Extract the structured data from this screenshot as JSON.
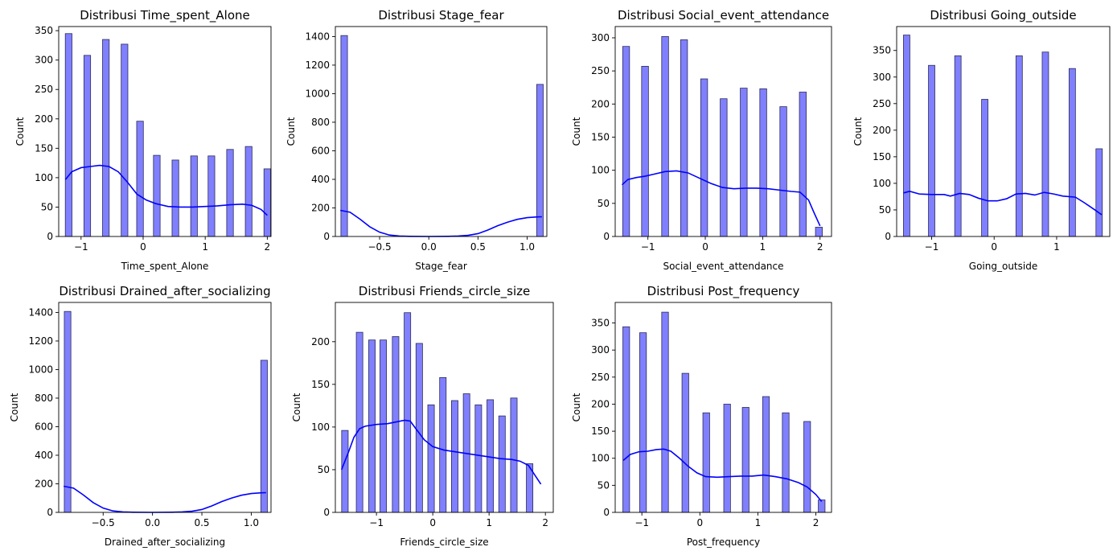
{
  "colors": {
    "bar_fill": "#8080ff",
    "bar_edge": "#2b2b55",
    "kde_line": "#0000ff",
    "axis": "#000000"
  },
  "chart_data": [
    {
      "type": "histogram",
      "title": "Distribusi Time_spent_Alone",
      "xlabel": "Time_spent_Alone",
      "ylabel": "Count",
      "xlim": [
        -1.36,
        2.06
      ],
      "ylim": [
        0,
        357
      ],
      "xticks": [
        -1,
        0,
        1,
        2
      ],
      "yticks": [
        0,
        50,
        100,
        150,
        200,
        250,
        300,
        350
      ],
      "bar_width": 0.1075,
      "bars": [
        {
          "x": -1.2,
          "count": 345
        },
        {
          "x": -0.9,
          "count": 308
        },
        {
          "x": -0.6,
          "count": 335
        },
        {
          "x": -0.3,
          "count": 327
        },
        {
          "x": -0.05,
          "count": 196
        },
        {
          "x": 0.22,
          "count": 138
        },
        {
          "x": 0.52,
          "count": 130
        },
        {
          "x": 0.82,
          "count": 137
        },
        {
          "x": 1.1,
          "count": 137
        },
        {
          "x": 1.4,
          "count": 148
        },
        {
          "x": 1.7,
          "count": 153
        },
        {
          "x": 2.0,
          "count": 115
        }
      ],
      "kde": [
        [
          -1.25,
          97
        ],
        [
          -1.15,
          110
        ],
        [
          -1.0,
          117
        ],
        [
          -0.85,
          119
        ],
        [
          -0.7,
          121
        ],
        [
          -0.55,
          119
        ],
        [
          -0.4,
          110
        ],
        [
          -0.25,
          92
        ],
        [
          -0.1,
          72
        ],
        [
          0.05,
          62
        ],
        [
          0.2,
          56
        ],
        [
          0.4,
          51
        ],
        [
          0.6,
          50
        ],
        [
          0.8,
          50
        ],
        [
          1.0,
          51
        ],
        [
          1.2,
          52
        ],
        [
          1.4,
          54
        ],
        [
          1.6,
          55
        ],
        [
          1.75,
          53
        ],
        [
          1.9,
          46
        ],
        [
          2.0,
          36
        ]
      ]
    },
    {
      "type": "histogram",
      "title": "Distribusi Stage_fear",
      "xlabel": "Stage_fear",
      "ylabel": "Count",
      "xlim": [
        -0.95,
        1.2
      ],
      "ylim": [
        0,
        1470
      ],
      "xticks": [
        -0.5,
        0.0,
        0.5,
        1.0
      ],
      "xtick_labels": [
        "−0.5",
        "0.0",
        "0.5",
        "1.0"
      ],
      "yticks": [
        0,
        200,
        400,
        600,
        800,
        1000,
        1200,
        1400
      ],
      "bar_width": 0.0667,
      "bars": [
        {
          "x": -0.86,
          "count": 1407
        },
        {
          "x": 1.13,
          "count": 1065
        }
      ],
      "kde": [
        [
          -0.9,
          183
        ],
        [
          -0.8,
          170
        ],
        [
          -0.7,
          122
        ],
        [
          -0.6,
          68
        ],
        [
          -0.5,
          30
        ],
        [
          -0.4,
          10
        ],
        [
          -0.3,
          3
        ],
        [
          -0.2,
          1
        ],
        [
          0.0,
          0
        ],
        [
          0.2,
          1
        ],
        [
          0.3,
          3
        ],
        [
          0.4,
          8
        ],
        [
          0.5,
          20
        ],
        [
          0.6,
          45
        ],
        [
          0.7,
          75
        ],
        [
          0.8,
          100
        ],
        [
          0.9,
          120
        ],
        [
          1.0,
          132
        ],
        [
          1.1,
          137
        ],
        [
          1.15,
          138
        ]
      ]
    },
    {
      "type": "histogram",
      "title": "Distribusi Social_event_attendance",
      "xlabel": "Social_event_attendance",
      "ylabel": "Count",
      "xlim": [
        -1.57,
        2.2
      ],
      "ylim": [
        0,
        317
      ],
      "xticks": [
        -1,
        0,
        1,
        2
      ],
      "yticks": [
        0,
        50,
        100,
        150,
        200,
        250,
        300
      ],
      "bar_width": 0.1195,
      "bars": [
        {
          "x": -1.38,
          "count": 287
        },
        {
          "x": -1.05,
          "count": 257
        },
        {
          "x": -0.7,
          "count": 302
        },
        {
          "x": -0.37,
          "count": 297
        },
        {
          "x": -0.02,
          "count": 238
        },
        {
          "x": 0.32,
          "count": 208
        },
        {
          "x": 0.67,
          "count": 224
        },
        {
          "x": 1.01,
          "count": 223
        },
        {
          "x": 1.36,
          "count": 196
        },
        {
          "x": 1.7,
          "count": 218
        },
        {
          "x": 1.98,
          "count": 14
        }
      ],
      "kde": [
        [
          -1.45,
          78
        ],
        [
          -1.35,
          86
        ],
        [
          -1.2,
          89
        ],
        [
          -1.05,
          91
        ],
        [
          -0.9,
          94
        ],
        [
          -0.7,
          98
        ],
        [
          -0.5,
          99
        ],
        [
          -0.3,
          96
        ],
        [
          -0.1,
          88
        ],
        [
          0.1,
          80
        ],
        [
          0.3,
          74
        ],
        [
          0.5,
          72
        ],
        [
          0.7,
          73
        ],
        [
          0.9,
          73
        ],
        [
          1.1,
          72
        ],
        [
          1.3,
          70
        ],
        [
          1.5,
          68
        ],
        [
          1.65,
          67
        ],
        [
          1.8,
          55
        ],
        [
          1.9,
          35
        ],
        [
          2.0,
          16
        ]
      ]
    },
    {
      "type": "histogram",
      "title": "Distribusi Going_outside",
      "xlabel": "Going_outside",
      "ylabel": "Count",
      "xlim": [
        -1.56,
        1.85
      ],
      "ylim": [
        0,
        395
      ],
      "xticks": [
        -1,
        0,
        1
      ],
      "yticks": [
        0,
        50,
        100,
        150,
        200,
        250,
        300,
        350
      ],
      "bar_width": 0.1024,
      "bars": [
        {
          "x": -1.4,
          "count": 379
        },
        {
          "x": -1.0,
          "count": 322
        },
        {
          "x": -0.58,
          "count": 340
        },
        {
          "x": -0.15,
          "count": 258
        },
        {
          "x": 0.4,
          "count": 340
        },
        {
          "x": 0.82,
          "count": 347
        },
        {
          "x": 1.25,
          "count": 316
        },
        {
          "x": 1.68,
          "count": 165
        }
      ],
      "kde": [
        [
          -1.45,
          82
        ],
        [
          -1.35,
          85
        ],
        [
          -1.2,
          80
        ],
        [
          -1.0,
          79
        ],
        [
          -0.8,
          79
        ],
        [
          -0.7,
          76
        ],
        [
          -0.55,
          81
        ],
        [
          -0.4,
          79
        ],
        [
          -0.25,
          72
        ],
        [
          -0.1,
          67
        ],
        [
          0.05,
          67
        ],
        [
          0.2,
          71
        ],
        [
          0.35,
          80
        ],
        [
          0.5,
          81
        ],
        [
          0.65,
          78
        ],
        [
          0.8,
          83
        ],
        [
          0.95,
          80
        ],
        [
          1.1,
          76
        ],
        [
          1.3,
          74
        ],
        [
          1.45,
          63
        ],
        [
          1.6,
          51
        ],
        [
          1.72,
          41
        ]
      ]
    },
    {
      "type": "histogram",
      "title": "Distribusi Drained_after_socializing",
      "xlabel": "Drained_after_socializing",
      "ylabel": "Count",
      "xlim": [
        -0.95,
        1.2
      ],
      "ylim": [
        0,
        1470
      ],
      "xticks": [
        -0.5,
        0.0,
        0.5,
        1.0
      ],
      "xtick_labels": [
        "−0.5",
        "0.0",
        "0.5",
        "1.0"
      ],
      "yticks": [
        0,
        200,
        400,
        600,
        800,
        1000,
        1200,
        1400
      ],
      "bar_width": 0.0667,
      "bars": [
        {
          "x": -0.86,
          "count": 1407
        },
        {
          "x": 1.13,
          "count": 1065
        }
      ],
      "kde": [
        [
          -0.9,
          183
        ],
        [
          -0.8,
          170
        ],
        [
          -0.7,
          122
        ],
        [
          -0.6,
          68
        ],
        [
          -0.5,
          30
        ],
        [
          -0.4,
          10
        ],
        [
          -0.3,
          3
        ],
        [
          -0.2,
          1
        ],
        [
          0.0,
          0
        ],
        [
          0.2,
          1
        ],
        [
          0.3,
          3
        ],
        [
          0.4,
          8
        ],
        [
          0.5,
          20
        ],
        [
          0.6,
          45
        ],
        [
          0.7,
          75
        ],
        [
          0.8,
          100
        ],
        [
          0.9,
          120
        ],
        [
          1.0,
          132
        ],
        [
          1.1,
          137
        ],
        [
          1.15,
          138
        ]
      ]
    },
    {
      "type": "histogram",
      "title": "Distribusi Friends_circle_size",
      "xlabel": "Friends_circle_size",
      "ylabel": "Count",
      "xlim": [
        -1.73,
        2.14
      ],
      "ylim": [
        0,
        246
      ],
      "xticks": [
        -1,
        0,
        1,
        2
      ],
      "yticks": [
        0,
        50,
        100,
        150,
        200
      ],
      "bar_width": 0.1158,
      "bars": [
        {
          "x": -1.56,
          "count": 96
        },
        {
          "x": -1.3,
          "count": 211
        },
        {
          "x": -1.08,
          "count": 202
        },
        {
          "x": -0.88,
          "count": 202
        },
        {
          "x": -0.66,
          "count": 206
        },
        {
          "x": -0.45,
          "count": 234
        },
        {
          "x": -0.24,
          "count": 198
        },
        {
          "x": -0.03,
          "count": 126
        },
        {
          "x": 0.18,
          "count": 158
        },
        {
          "x": 0.39,
          "count": 131
        },
        {
          "x": 0.6,
          "count": 139
        },
        {
          "x": 0.81,
          "count": 126
        },
        {
          "x": 1.02,
          "count": 132
        },
        {
          "x": 1.23,
          "count": 113
        },
        {
          "x": 1.44,
          "count": 134
        },
        {
          "x": 1.72,
          "count": 57
        }
      ],
      "kde": [
        [
          -1.62,
          50
        ],
        [
          -1.5,
          70
        ],
        [
          -1.4,
          88
        ],
        [
          -1.3,
          98
        ],
        [
          -1.2,
          101
        ],
        [
          -1.0,
          103
        ],
        [
          -0.8,
          104
        ],
        [
          -0.65,
          106
        ],
        [
          -0.5,
          108
        ],
        [
          -0.4,
          107
        ],
        [
          -0.3,
          98
        ],
        [
          -0.15,
          85
        ],
        [
          0.0,
          77
        ],
        [
          0.2,
          73
        ],
        [
          0.4,
          71
        ],
        [
          0.6,
          69
        ],
        [
          0.8,
          67
        ],
        [
          1.0,
          65
        ],
        [
          1.2,
          63
        ],
        [
          1.4,
          62
        ],
        [
          1.55,
          60
        ],
        [
          1.7,
          55
        ],
        [
          1.82,
          43
        ],
        [
          1.92,
          33
        ]
      ]
    },
    {
      "type": "histogram",
      "title": "Distribusi Post_frequency",
      "xlabel": "Post_frequency",
      "ylabel": "Count",
      "xlim": [
        -1.46,
        2.27
      ],
      "ylim": [
        0,
        388
      ],
      "xticks": [
        -1,
        0,
        1,
        2
      ],
      "yticks": [
        0,
        50,
        100,
        150,
        200,
        250,
        300,
        350
      ],
      "bar_width": 0.1159,
      "bars": [
        {
          "x": -1.27,
          "count": 343
        },
        {
          "x": -0.98,
          "count": 332
        },
        {
          "x": -0.6,
          "count": 370
        },
        {
          "x": -0.25,
          "count": 257
        },
        {
          "x": 0.11,
          "count": 184
        },
        {
          "x": 0.47,
          "count": 200
        },
        {
          "x": 0.79,
          "count": 194
        },
        {
          "x": 1.14,
          "count": 214
        },
        {
          "x": 1.48,
          "count": 184
        },
        {
          "x": 1.85,
          "count": 168
        },
        {
          "x": 2.1,
          "count": 23
        }
      ],
      "kde": [
        [
          -1.32,
          96
        ],
        [
          -1.2,
          107
        ],
        [
          -1.05,
          112
        ],
        [
          -0.9,
          113
        ],
        [
          -0.75,
          116
        ],
        [
          -0.62,
          117
        ],
        [
          -0.5,
          113
        ],
        [
          -0.35,
          100
        ],
        [
          -0.2,
          85
        ],
        [
          -0.05,
          73
        ],
        [
          0.1,
          66
        ],
        [
          0.3,
          65
        ],
        [
          0.5,
          66
        ],
        [
          0.7,
          67
        ],
        [
          0.9,
          67
        ],
        [
          1.1,
          69
        ],
        [
          1.3,
          66
        ],
        [
          1.5,
          62
        ],
        [
          1.7,
          55
        ],
        [
          1.85,
          47
        ],
        [
          2.0,
          33
        ],
        [
          2.1,
          20
        ]
      ]
    }
  ]
}
